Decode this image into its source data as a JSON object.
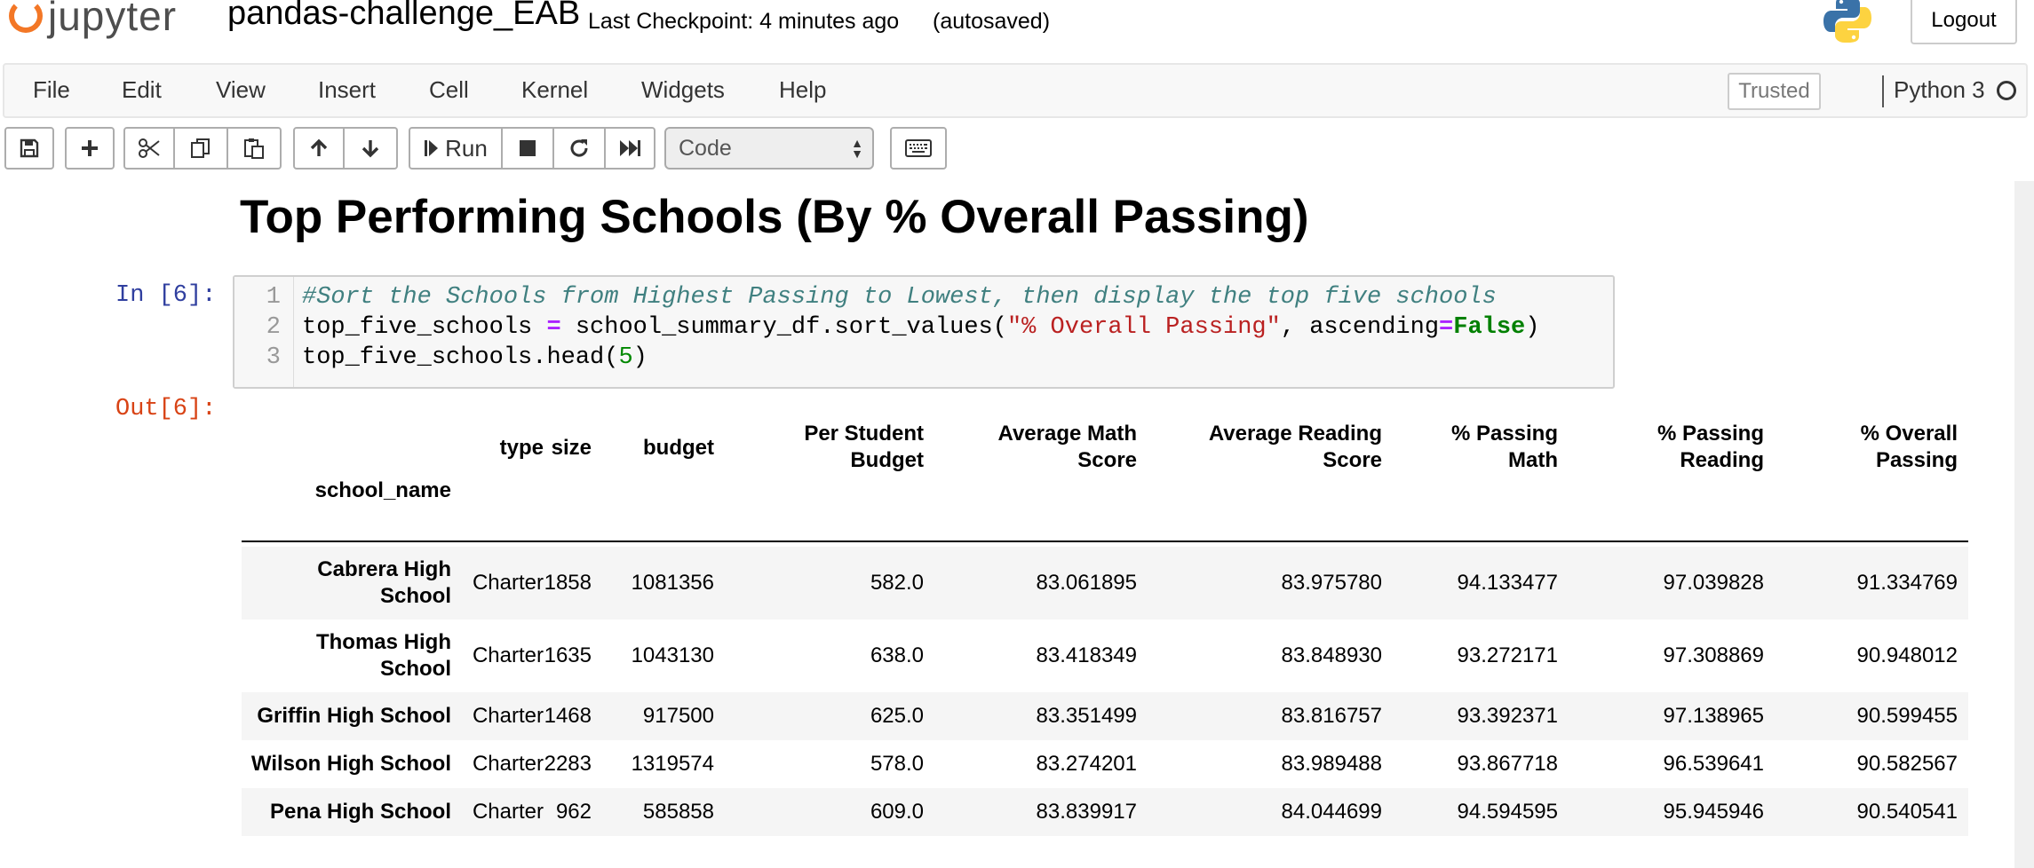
{
  "header": {
    "logo_text": "jupyter",
    "notebook_name": "pandas-challenge_EAB",
    "checkpoint": "Last Checkpoint: 4 minutes ago",
    "autosave": "(autosaved)",
    "logout_label": "Logout"
  },
  "menubar": {
    "items": [
      "File",
      "Edit",
      "View",
      "Insert",
      "Cell",
      "Kernel",
      "Widgets",
      "Help"
    ],
    "trusted": "Trusted",
    "kernel": "Python 3"
  },
  "toolbar": {
    "run_label": "Run",
    "cell_type": "Code",
    "icons": [
      "save-icon",
      "plus-icon",
      "scissors-icon",
      "copy-icon",
      "paste-icon",
      "arrow-up-icon",
      "arrow-down-icon",
      "run-icon",
      "stop-icon",
      "restart-icon",
      "fast-forward-icon",
      "keyboard-icon"
    ]
  },
  "notebook": {
    "heading": "Top Performing Schools (By % Overall Passing)",
    "in_prompt": "In [6]:",
    "out_prompt": "Out[6]:",
    "code_lines": [
      "#Sort the Schools from Highest Passing to Lowest, then display the top five schools",
      "top_five_schools = school_summary_df.sort_values(\"% Overall Passing\", ascending=False)",
      "top_five_schools.head(5)"
    ],
    "line_numbers": [
      "1",
      "2",
      "3"
    ]
  },
  "dataframe": {
    "index_name": "school_name",
    "columns": [
      [
        "type"
      ],
      [
        "size"
      ],
      [
        "budget"
      ],
      [
        "Per Student",
        "Budget"
      ],
      [
        "Average Math",
        "Score"
      ],
      [
        "Average Reading",
        "Score"
      ],
      [
        "% Passing",
        "Math"
      ],
      [
        "% Passing",
        "Reading"
      ],
      [
        "% Overall",
        "Passing"
      ]
    ],
    "rows": [
      {
        "name": [
          "Cabrera High",
          "School"
        ],
        "values": [
          "Charter",
          "1858",
          "1081356",
          "582.0",
          "83.061895",
          "83.975780",
          "94.133477",
          "97.039828",
          "91.334769"
        ]
      },
      {
        "name": [
          "Thomas High",
          "School"
        ],
        "values": [
          "Charter",
          "1635",
          "1043130",
          "638.0",
          "83.418349",
          "83.848930",
          "93.272171",
          "97.308869",
          "90.948012"
        ]
      },
      {
        "name": [
          "Griffin High School"
        ],
        "values": [
          "Charter",
          "1468",
          "917500",
          "625.0",
          "83.351499",
          "83.816757",
          "93.392371",
          "97.138965",
          "90.599455"
        ]
      },
      {
        "name": [
          "Wilson High School"
        ],
        "values": [
          "Charter",
          "2283",
          "1319574",
          "578.0",
          "83.274201",
          "83.989488",
          "93.867718",
          "96.539641",
          "90.582567"
        ]
      },
      {
        "name": [
          "Pena High School"
        ],
        "values": [
          "Charter",
          "962",
          "585858",
          "609.0",
          "83.839917",
          "84.044699",
          "94.594595",
          "95.945946",
          "90.540541"
        ]
      }
    ]
  }
}
